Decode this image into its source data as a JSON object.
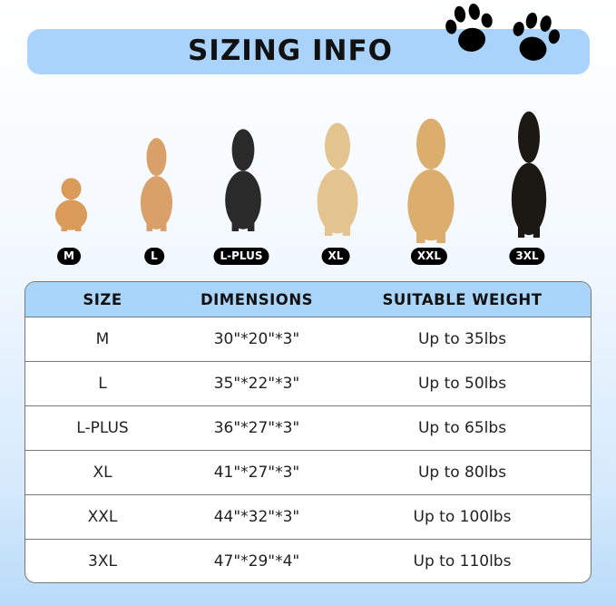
{
  "title": "SIZING INFO",
  "colors": {
    "banner": "#a9d3fa",
    "table_header": "#a9d5fb",
    "badge": "#000000"
  },
  "icons": [
    "paw-print-icon",
    "paw-print-icon"
  ],
  "dogs": [
    {
      "label": "M",
      "color": "#d99a5a"
    },
    {
      "label": "L",
      "color": "#d9a06a"
    },
    {
      "label": "L-PLUS",
      "color": "#2a2a2a"
    },
    {
      "label": "XL",
      "color": "#e3c48f"
    },
    {
      "label": "XXL",
      "color": "#dcae6e"
    },
    {
      "label": "3XL",
      "color": "#1c1814"
    }
  ],
  "table": {
    "headers": [
      "SIZE",
      "DIMENSIONS",
      "SUITABLE WEIGHT"
    ],
    "rows": [
      [
        "M",
        "30\"*20\"*3\"",
        "Up to 35lbs"
      ],
      [
        "L",
        "35\"*22\"*3\"",
        "Up to 50lbs"
      ],
      [
        "L-PLUS",
        "36\"*27\"*3\"",
        "Up to 65lbs"
      ],
      [
        "XL",
        "41\"*27\"*3\"",
        "Up to 80lbs"
      ],
      [
        "XXL",
        "44\"*32\"*3\"",
        "Up to 100lbs"
      ],
      [
        "3XL",
        "47\"*29\"*4\"",
        "Up to 110lbs"
      ]
    ]
  }
}
